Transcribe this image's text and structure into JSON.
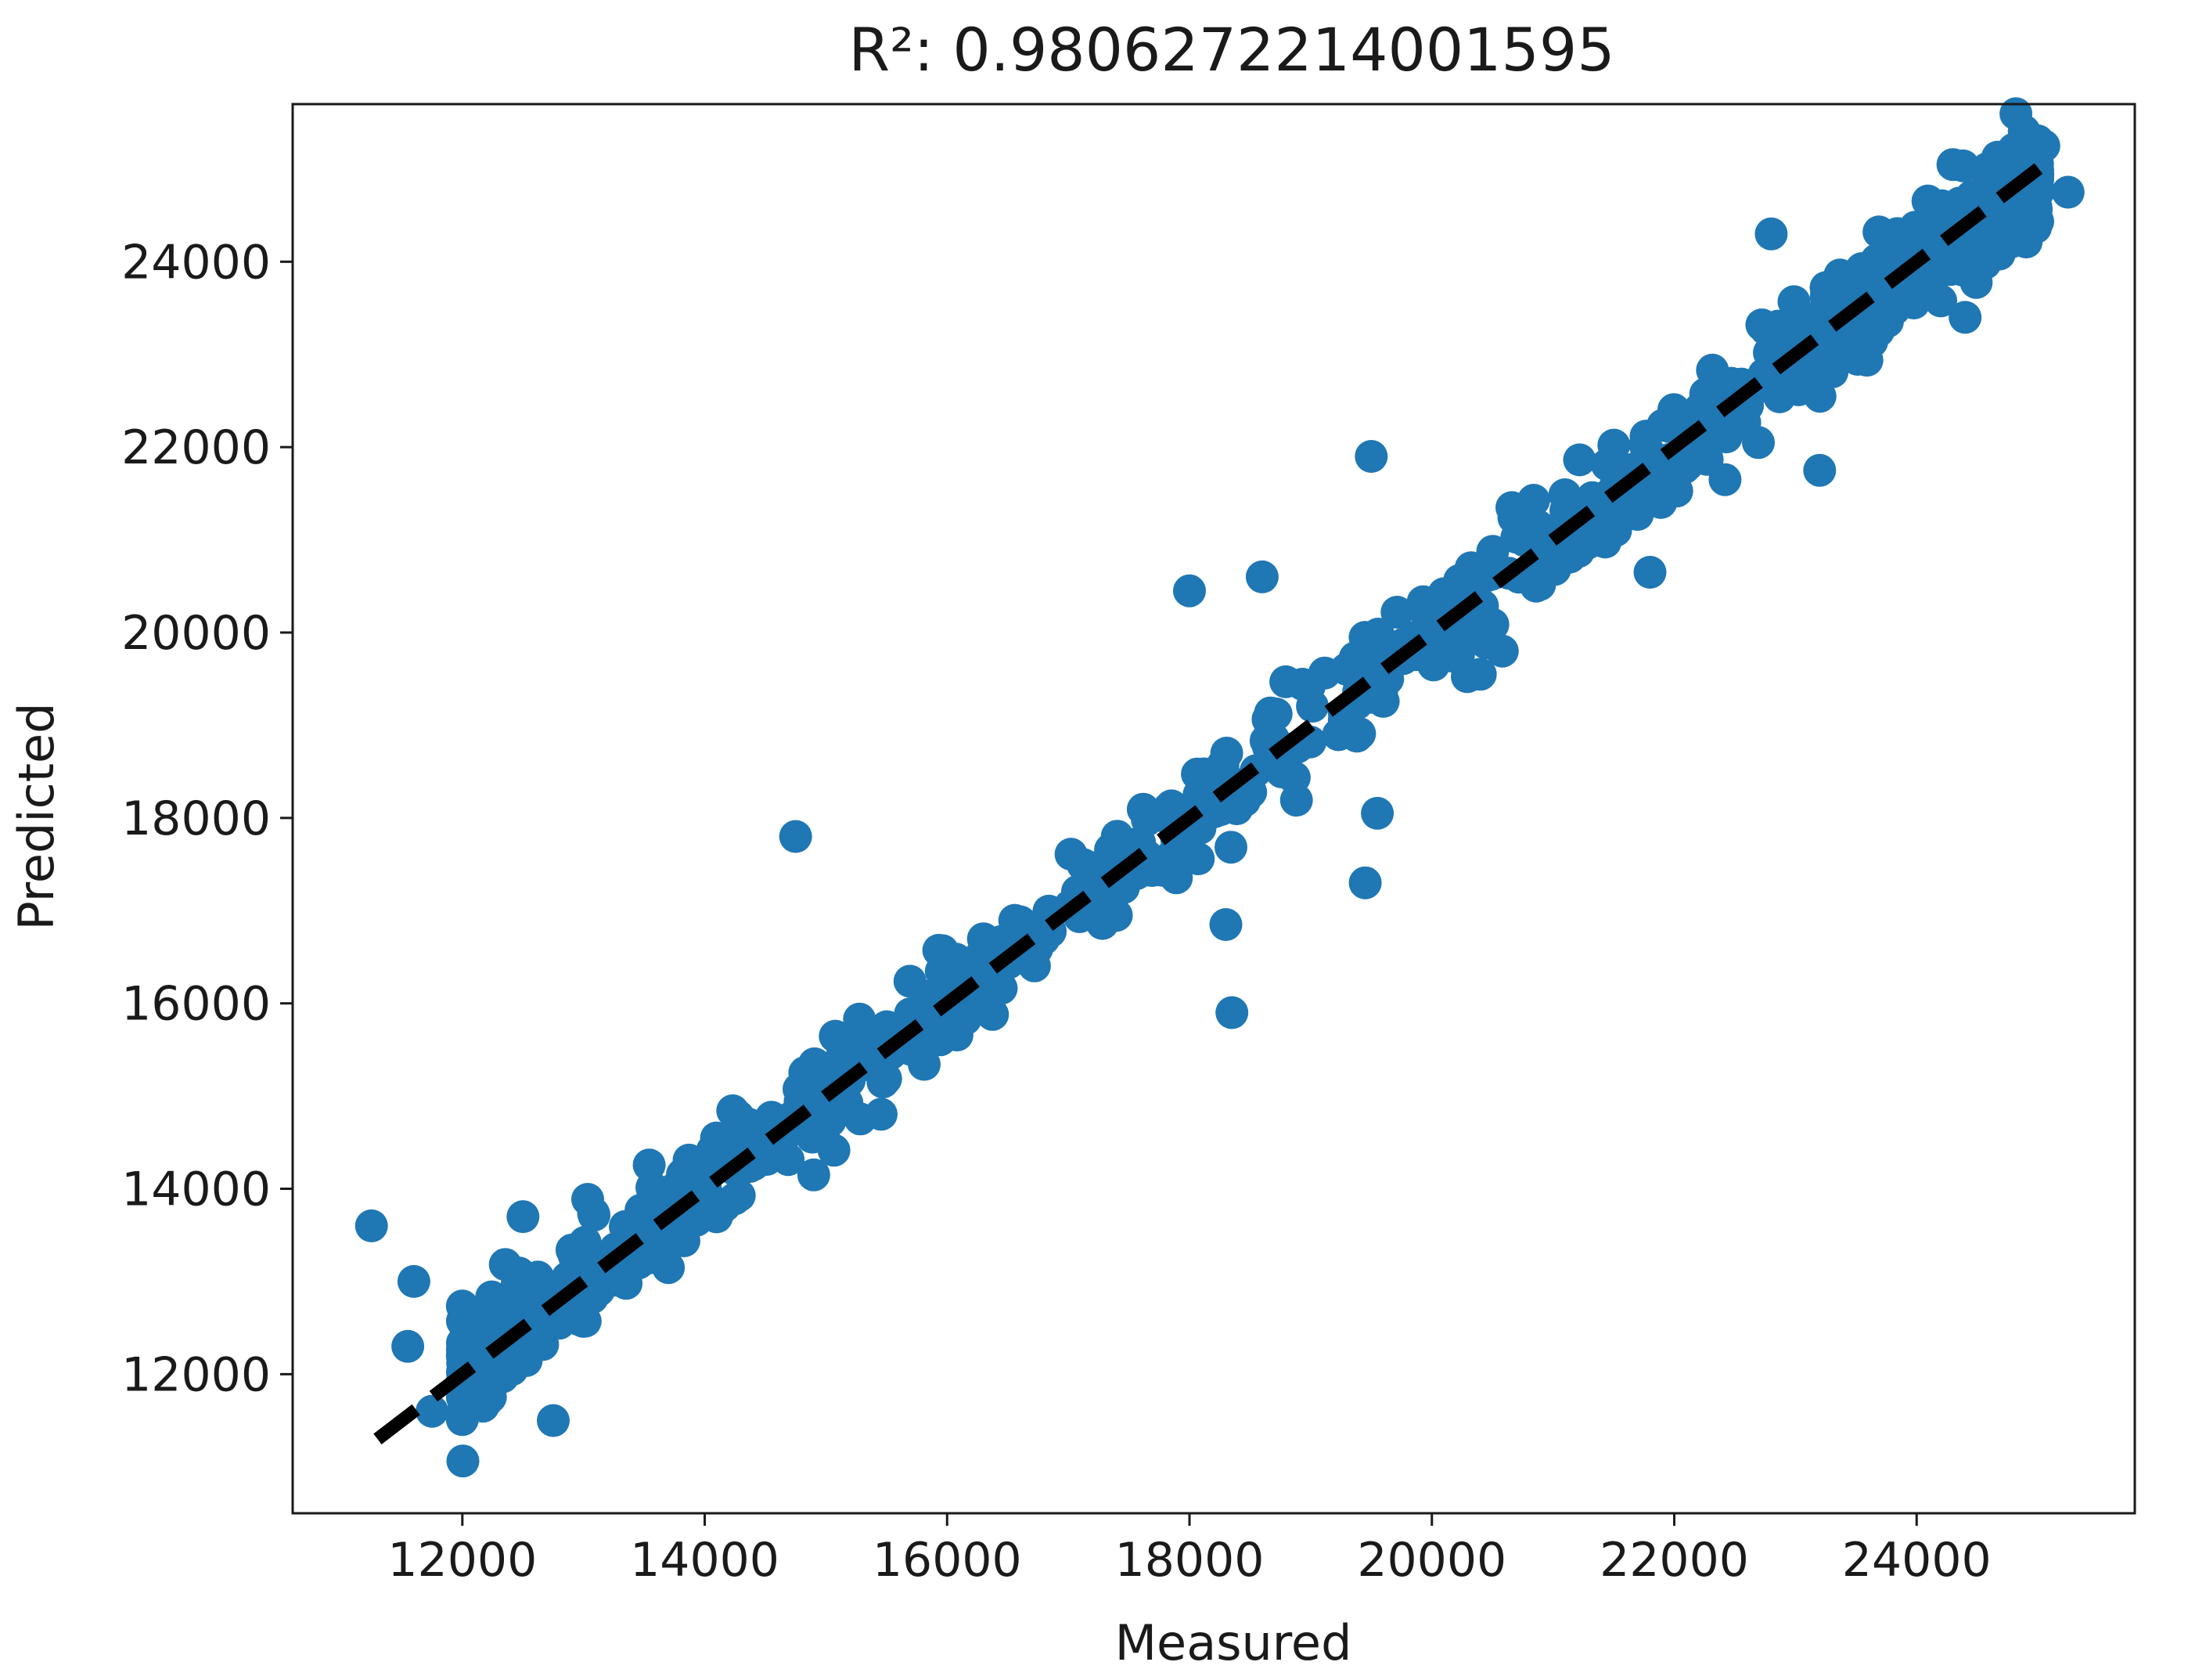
{
  "chart_data": {
    "type": "scatter",
    "title": "R²: 0.9806272214001595",
    "xlabel": "Measured",
    "ylabel": "Predicted",
    "xlim": [
      10600,
      25800
    ],
    "ylim": [
      10500,
      25700
    ],
    "xticks": [
      "12000",
      "14000",
      "16000",
      "18000",
      "20000",
      "22000",
      "24000"
    ],
    "yticks": [
      "12000",
      "14000",
      "16000",
      "18000",
      "20000",
      "22000",
      "24000"
    ],
    "grid": false,
    "legend": "none",
    "colors": {
      "points": "#1f77b4",
      "line": "#000000",
      "axes": "#1a1a1a"
    },
    "reference_line": {
      "style": "dashed",
      "x": [
        11300,
        25100
      ],
      "y": [
        11300,
        25100
      ]
    },
    "outliers": [
      {
        "x": 11250,
        "y": 13600
      },
      {
        "x": 11550,
        "y": 12300
      },
      {
        "x": 11600,
        "y": 13000
      },
      {
        "x": 11750,
        "y": 11600
      },
      {
        "x": 12000,
        "y": 12200
      },
      {
        "x": 12500,
        "y": 13700
      },
      {
        "x": 12750,
        "y": 11500
      },
      {
        "x": 12800,
        "y": 12550
      },
      {
        "x": 13700,
        "y": 13150
      },
      {
        "x": 14750,
        "y": 17800
      },
      {
        "x": 14900,
        "y": 14150
      },
      {
        "x": 18000,
        "y": 20450
      },
      {
        "x": 18300,
        "y": 16850
      },
      {
        "x": 18350,
        "y": 15900
      },
      {
        "x": 18600,
        "y": 20600
      },
      {
        "x": 19450,
        "y": 17300
      },
      {
        "x": 19500,
        "y": 21900
      },
      {
        "x": 19550,
        "y": 18050
      },
      {
        "x": 20400,
        "y": 19550
      },
      {
        "x": 21800,
        "y": 20650
      },
      {
        "x": 22800,
        "y": 24300
      },
      {
        "x": 23200,
        "y": 21750
      },
      {
        "x": 24400,
        "y": 23400
      },
      {
        "x": 25050,
        "y": 25250
      },
      {
        "x": 25250,
        "y": 24750
      }
    ],
    "point_cloud": {
      "x_range": [
        12000,
        25000
      ],
      "slope": 1.0,
      "spread": 450,
      "count": 950
    }
  }
}
